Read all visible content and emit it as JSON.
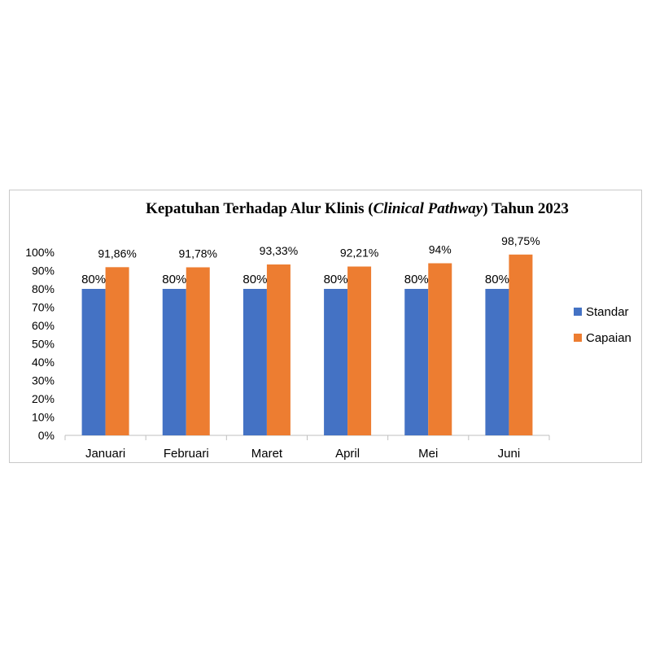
{
  "chart_data": {
    "type": "bar",
    "title_parts": [
      "Kepatuhan Terhadap Alur Klinis (",
      "Clinical Pathway",
      ") Tahun 2023"
    ],
    "categories": [
      "Januari",
      "Februari",
      "Maret",
      "April",
      "Mei",
      "Juni"
    ],
    "series": [
      {
        "name": "Standar",
        "color": "#4472c4",
        "values": [
          80,
          80,
          80,
          80,
          80,
          80
        ],
        "labels": [
          "80%",
          "80%",
          "80%",
          "80%",
          "80%",
          "80%"
        ]
      },
      {
        "name": "Capaian",
        "color": "#ed7d31",
        "values": [
          91.86,
          91.78,
          93.33,
          92.21,
          94,
          98.75
        ],
        "labels": [
          "91,86%",
          "91,78%",
          "93,33%",
          "92,21%",
          "94%",
          "98,75%"
        ]
      }
    ],
    "y_ticks": [
      "0%",
      "10%",
      "20%",
      "30%",
      "40%",
      "50%",
      "60%",
      "70%",
      "80%",
      "90%",
      "100%"
    ],
    "ylim": [
      0,
      100
    ],
    "grid": false,
    "legend_position": "right"
  }
}
